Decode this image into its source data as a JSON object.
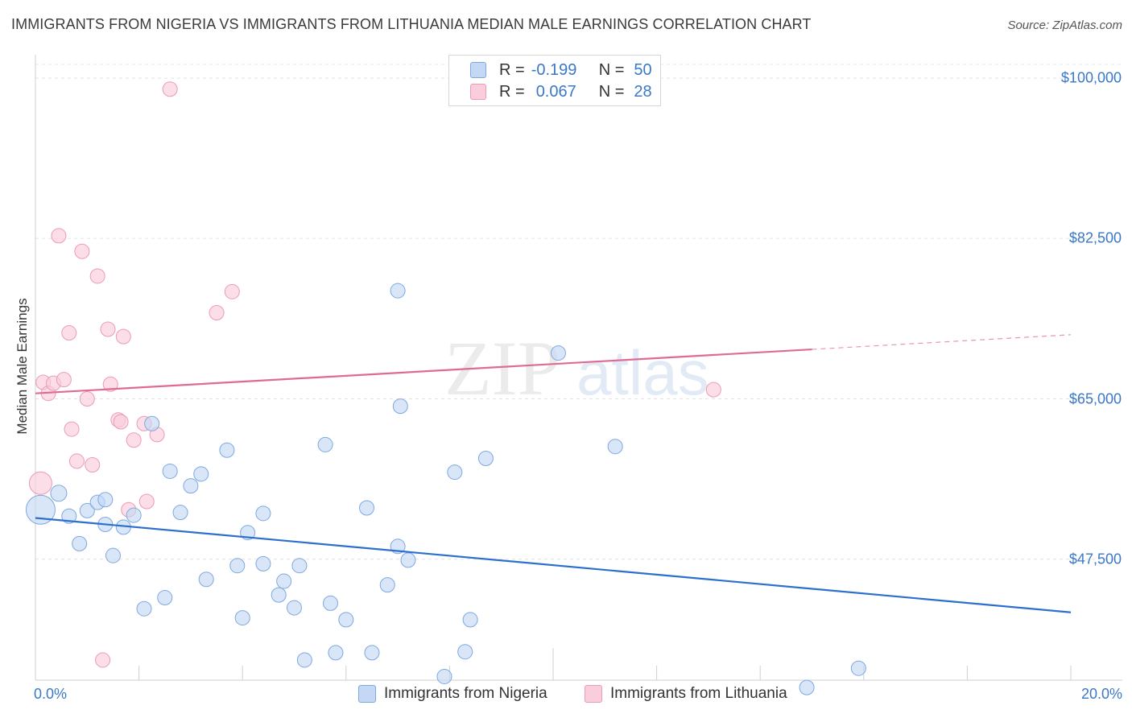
{
  "title": "IMMIGRANTS FROM NIGERIA VS IMMIGRANTS FROM LITHUANIA MEDIAN MALE EARNINGS CORRELATION CHART",
  "source": "Source: ZipAtlas.com",
  "watermark": {
    "zip": "ZIP",
    "atlas": "atlas"
  },
  "legend": {
    "nigeria": {
      "r_label": "R =",
      "r_value": "-0.199",
      "n_label": "N =",
      "n_value": "50"
    },
    "lithuania": {
      "r_label": "R =",
      "r_value": "0.067",
      "n_label": "N =",
      "n_value": "28"
    }
  },
  "colors": {
    "nigeria_fill": "#c3d8f5",
    "nigeria_stroke": "#7ea8e0",
    "nigeria_line": "#2d6fcf",
    "lithuania_fill": "#f9cddb",
    "lithuania_stroke": "#ec9ab5",
    "lithuania_line": "#e06a93",
    "tick_text": "#3a78c8"
  },
  "chart_data": {
    "type": "scatter",
    "title": "IMMIGRANTS FROM NIGERIA VS IMMIGRANTS FROM LITHUANIA MEDIAN MALE EARNINGS CORRELATION CHART",
    "xlabel": "",
    "ylabel": "Median Male Earnings",
    "xlim": [
      0,
      20
    ],
    "ylim": [
      34300,
      101500
    ],
    "x_tick_labels": [
      "0.0%",
      "20.0%"
    ],
    "y_ticks": [
      47500,
      65000,
      82500,
      100000
    ],
    "y_tick_labels": [
      "$47,500",
      "$65,000",
      "$82,500",
      "$100,000"
    ],
    "grid": true,
    "legend_position": "top-center",
    "series": [
      {
        "name": "Immigrants from Nigeria",
        "points": [
          [
            0.1,
            52900,
            18
          ],
          [
            0.45,
            54700,
            10
          ],
          [
            0.65,
            52200,
            9
          ],
          [
            0.85,
            49200,
            9
          ],
          [
            1.0,
            52800,
            9
          ],
          [
            1.2,
            53700,
            9
          ],
          [
            1.35,
            51300,
            9
          ],
          [
            1.5,
            47900,
            9
          ],
          [
            1.7,
            51000,
            9
          ],
          [
            1.9,
            52300,
            9
          ],
          [
            2.1,
            42100,
            9
          ],
          [
            2.25,
            62300,
            9
          ],
          [
            2.5,
            43300,
            9
          ],
          [
            2.6,
            57100,
            9
          ],
          [
            2.8,
            52600,
            9
          ],
          [
            3.0,
            55500,
            9
          ],
          [
            3.2,
            56800,
            9
          ],
          [
            3.3,
            45300,
            9
          ],
          [
            3.7,
            59400,
            9
          ],
          [
            3.9,
            46800,
            9
          ],
          [
            4.0,
            41100,
            9
          ],
          [
            4.1,
            50400,
            9
          ],
          [
            4.4,
            52500,
            9
          ],
          [
            4.4,
            47000,
            9
          ],
          [
            4.7,
            43600,
            9
          ],
          [
            4.8,
            45100,
            9
          ],
          [
            5.0,
            42200,
            9
          ],
          [
            5.1,
            46800,
            9
          ],
          [
            5.2,
            36500,
            9
          ],
          [
            5.6,
            60000,
            9
          ],
          [
            5.7,
            42700,
            9
          ],
          [
            5.8,
            37300,
            9
          ],
          [
            6.0,
            40900,
            9
          ],
          [
            6.4,
            53100,
            9
          ],
          [
            6.5,
            37300,
            9
          ],
          [
            6.8,
            44700,
            9
          ],
          [
            7.0,
            76800,
            9
          ],
          [
            7.05,
            64200,
            9
          ],
          [
            7.0,
            48900,
            9
          ],
          [
            7.2,
            47400,
            9
          ],
          [
            7.9,
            34700,
            9
          ],
          [
            8.1,
            57000,
            9
          ],
          [
            8.3,
            37400,
            9
          ],
          [
            8.4,
            40900,
            9
          ],
          [
            8.7,
            58500,
            9
          ],
          [
            10.1,
            70000,
            9
          ],
          [
            11.2,
            59800,
            9
          ],
          [
            14.9,
            33500,
            9
          ],
          [
            15.9,
            35600,
            9
          ],
          [
            1.35,
            54000,
            9
          ]
        ]
      },
      {
        "name": "Immigrants from Lithuania",
        "points": [
          [
            0.1,
            55800,
            14
          ],
          [
            0.15,
            66800,
            9
          ],
          [
            0.25,
            65600,
            9
          ],
          [
            0.35,
            66700,
            9
          ],
          [
            0.45,
            82800,
            9
          ],
          [
            0.55,
            67100,
            9
          ],
          [
            0.65,
            72200,
            9
          ],
          [
            0.7,
            61700,
            9
          ],
          [
            0.8,
            58200,
            9
          ],
          [
            0.9,
            81100,
            9
          ],
          [
            1.0,
            65000,
            9
          ],
          [
            1.1,
            57800,
            9
          ],
          [
            1.2,
            78400,
            9
          ],
          [
            1.3,
            36500,
            9
          ],
          [
            1.4,
            72600,
            9
          ],
          [
            1.45,
            66600,
            9
          ],
          [
            1.6,
            62700,
            9
          ],
          [
            1.65,
            62500,
            9
          ],
          [
            1.7,
            71800,
            9
          ],
          [
            1.8,
            52900,
            9
          ],
          [
            1.9,
            60500,
            9
          ],
          [
            2.1,
            62300,
            9
          ],
          [
            2.15,
            53800,
            9
          ],
          [
            2.35,
            61100,
            9
          ],
          [
            2.6,
            98800,
            9
          ],
          [
            3.5,
            74400,
            9
          ],
          [
            3.8,
            76700,
            9
          ],
          [
            13.1,
            66000,
            9
          ]
        ]
      }
    ],
    "trend_lines": [
      {
        "series": "Immigrants from Nigeria",
        "x": [
          0,
          20
        ],
        "y": [
          52000,
          41700
        ],
        "solid_to": 20
      },
      {
        "series": "Immigrants from Lithuania",
        "x": [
          0,
          20
        ],
        "y": [
          65600,
          72000
        ],
        "solid_to": 15
      }
    ]
  },
  "bottom_legend": [
    "Immigrants from Nigeria",
    "Immigrants from Lithuania"
  ]
}
